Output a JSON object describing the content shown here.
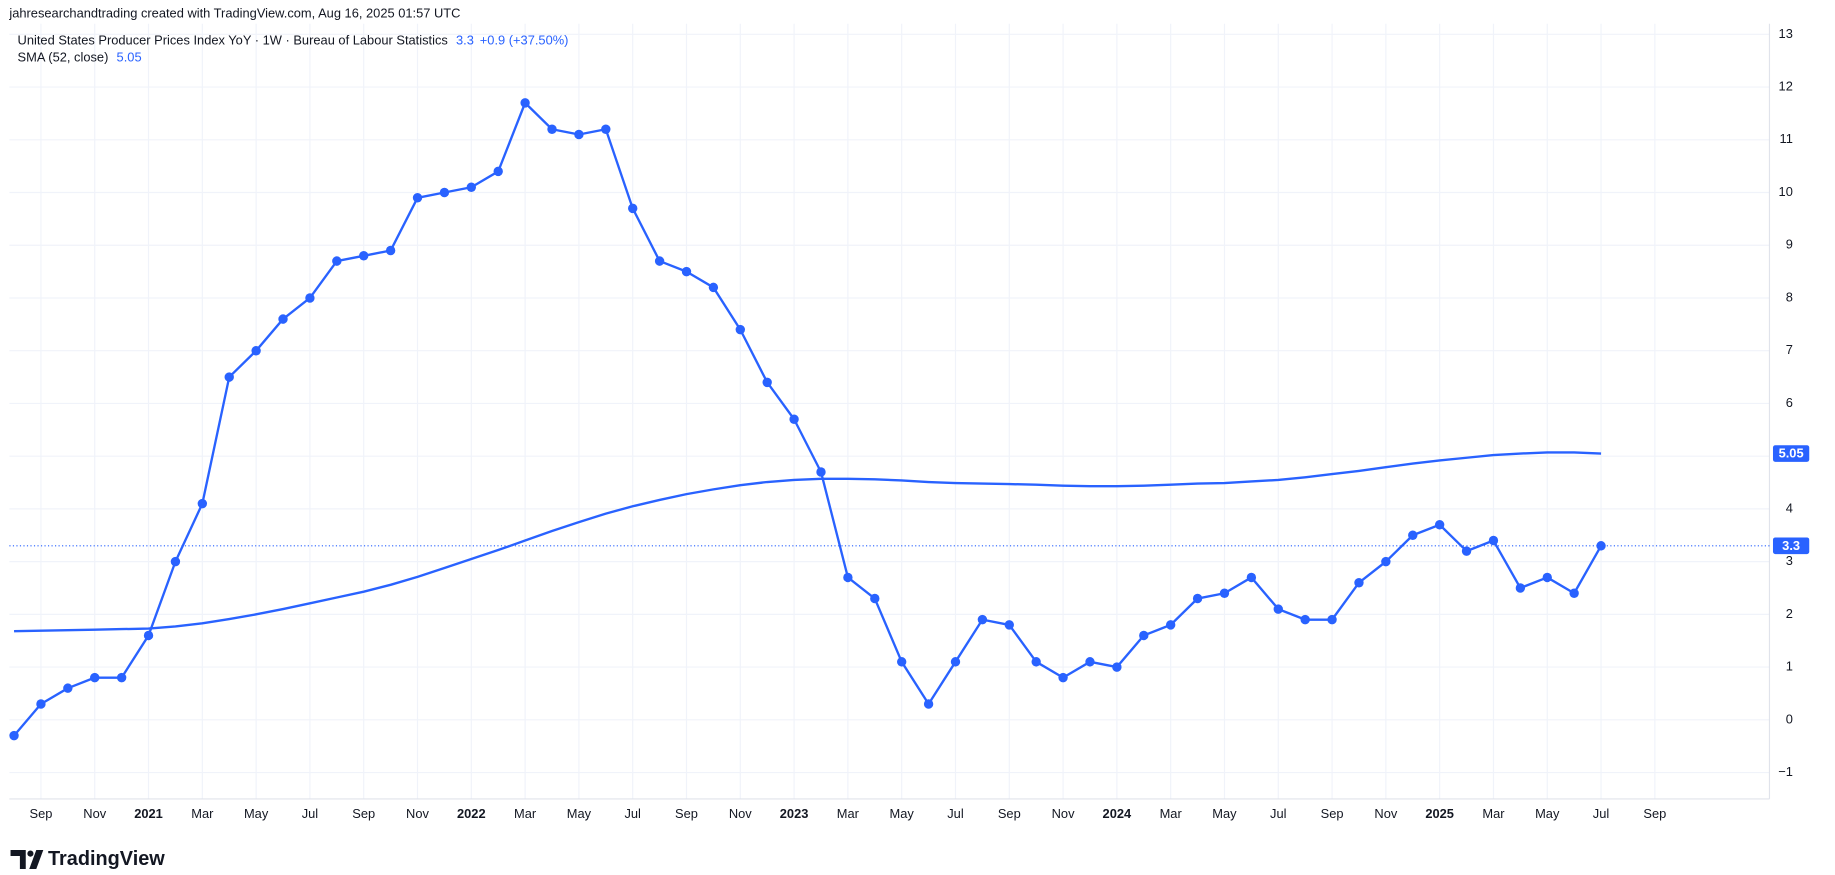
{
  "header": "jahresearchandtrading created with TradingView.com, Aug 16, 2025 01:57 UTC",
  "brand": "TradingView",
  "chart_data": {
    "type": "line",
    "legend": [
      {
        "name": "United States Producer Prices Index YoY · 1W · Bureau of Labour Statistics",
        "change": "+0.9 (+37.50%)"
      },
      {
        "name": "SMA (52, close)"
      }
    ],
    "x": [
      "2020-08",
      "2020-09",
      "2020-10",
      "2020-11",
      "2020-12",
      "2021-01",
      "2021-02",
      "2021-03",
      "2021-04",
      "2021-05",
      "2021-06",
      "2021-07",
      "2021-08",
      "2021-09",
      "2021-10",
      "2021-11",
      "2021-12",
      "2022-01",
      "2022-02",
      "2022-03",
      "2022-04",
      "2022-05",
      "2022-06",
      "2022-07",
      "2022-08",
      "2022-09",
      "2022-10",
      "2022-11",
      "2022-12",
      "2023-01",
      "2023-02",
      "2023-03",
      "2023-04",
      "2023-05",
      "2023-06",
      "2023-07",
      "2023-08",
      "2023-09",
      "2023-10",
      "2023-11",
      "2023-12",
      "2024-01",
      "2024-02",
      "2024-03",
      "2024-04",
      "2024-05",
      "2024-06",
      "2024-07",
      "2024-08",
      "2024-09",
      "2024-10",
      "2024-11",
      "2024-12",
      "2025-01",
      "2025-02",
      "2025-03",
      "2025-04",
      "2025-05",
      "2025-06",
      "2025-07"
    ],
    "series": [
      {
        "name": "United States Producer Prices Index YoY",
        "color": "#2962ff",
        "markers": true,
        "values": [
          -0.3,
          0.3,
          0.6,
          0.8,
          0.8,
          1.6,
          3.0,
          4.1,
          6.5,
          7.0,
          7.6,
          8.0,
          8.7,
          8.8,
          8.9,
          9.9,
          10.0,
          10.1,
          10.4,
          11.7,
          11.2,
          11.1,
          11.2,
          9.7,
          8.7,
          8.5,
          8.2,
          7.4,
          6.4,
          5.7,
          4.7,
          2.7,
          2.3,
          1.1,
          0.3,
          1.1,
          1.9,
          1.8,
          1.1,
          0.8,
          1.1,
          1.0,
          1.6,
          1.8,
          2.3,
          2.4,
          2.7,
          2.1,
          1.9,
          1.9,
          2.6,
          3.0,
          3.5,
          3.7,
          3.2,
          3.4,
          2.5,
          2.7,
          2.4,
          3.3
        ]
      },
      {
        "name": "SMA (52, close)",
        "color": "#2962ff",
        "markers": false,
        "values": [
          1.68,
          1.69,
          1.7,
          1.71,
          1.72,
          1.73,
          1.77,
          1.83,
          1.91,
          2.0,
          2.1,
          2.21,
          2.32,
          2.43,
          2.56,
          2.71,
          2.88,
          3.05,
          3.22,
          3.4,
          3.58,
          3.75,
          3.91,
          4.05,
          4.17,
          4.28,
          4.37,
          4.45,
          4.51,
          4.55,
          4.57,
          4.57,
          4.56,
          4.54,
          4.51,
          4.49,
          4.48,
          4.47,
          4.46,
          4.44,
          4.43,
          4.43,
          4.44,
          4.46,
          4.48,
          4.49,
          4.52,
          4.55,
          4.6,
          4.66,
          4.72,
          4.79,
          4.86,
          4.92,
          4.97,
          5.02,
          5.05,
          5.07,
          5.07,
          5.05
        ]
      }
    ],
    "xlim": [
      "2020-08",
      "2026-01"
    ],
    "xticks": [
      {
        "value": "2020-09",
        "label": "Sep"
      },
      {
        "value": "2020-11",
        "label": "Nov"
      },
      {
        "value": "2021-01",
        "label": "2021"
      },
      {
        "value": "2021-03",
        "label": "Mar"
      },
      {
        "value": "2021-05",
        "label": "May"
      },
      {
        "value": "2021-07",
        "label": "Jul"
      },
      {
        "value": "2021-09",
        "label": "Sep"
      },
      {
        "value": "2021-11",
        "label": "Nov"
      },
      {
        "value": "2022-01",
        "label": "2022"
      },
      {
        "value": "2022-03",
        "label": "Mar"
      },
      {
        "value": "2022-05",
        "label": "May"
      },
      {
        "value": "2022-07",
        "label": "Jul"
      },
      {
        "value": "2022-09",
        "label": "Sep"
      },
      {
        "value": "2022-11",
        "label": "Nov"
      },
      {
        "value": "2023-01",
        "label": "2023"
      },
      {
        "value": "2023-03",
        "label": "Mar"
      },
      {
        "value": "2023-05",
        "label": "May"
      },
      {
        "value": "2023-07",
        "label": "Jul"
      },
      {
        "value": "2023-09",
        "label": "Sep"
      },
      {
        "value": "2023-11",
        "label": "Nov"
      },
      {
        "value": "2024-01",
        "label": "2024"
      },
      {
        "value": "2024-03",
        "label": "Mar"
      },
      {
        "value": "2024-05",
        "label": "May"
      },
      {
        "value": "2024-07",
        "label": "Jul"
      },
      {
        "value": "2024-09",
        "label": "Sep"
      },
      {
        "value": "2024-11",
        "label": "Nov"
      },
      {
        "value": "2025-01",
        "label": "2025"
      },
      {
        "value": "2025-03",
        "label": "Mar"
      },
      {
        "value": "2025-05",
        "label": "May"
      },
      {
        "value": "2025-07",
        "label": "Jul"
      },
      {
        "value": "2025-09",
        "label": "Sep"
      }
    ],
    "ylim": [
      -1.5,
      13.2
    ],
    "yticks": [
      {
        "value": -1,
        "label": "−1"
      },
      0,
      1,
      2,
      3,
      4,
      5,
      6,
      7,
      8,
      9,
      10,
      11,
      12,
      13
    ],
    "grid": true
  }
}
